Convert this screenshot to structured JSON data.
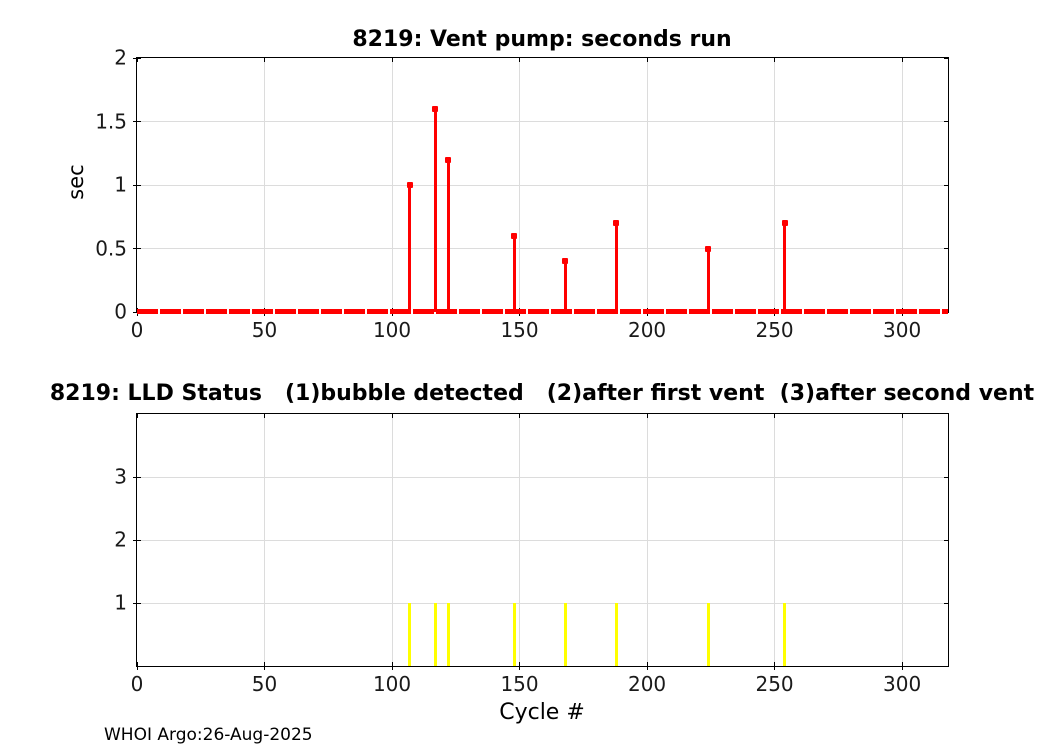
{
  "figure": {
    "footer": "WHOI Argo:26-Aug-2025"
  },
  "colors": {
    "stem_red": "#ff0000",
    "bar_yellow": "#ffff00",
    "grid": "#dcdcdc",
    "axis": "#000000"
  },
  "chart_data": [
    {
      "type": "stem",
      "title": "8219: Vent pump: seconds run",
      "ylabel": "sec",
      "series_color": "#ff0000",
      "x": [
        107,
        117,
        122,
        148,
        168,
        188,
        224,
        254
      ],
      "y": [
        1.0,
        1.6,
        1.2,
        0.6,
        0.4,
        0.7,
        0.5,
        0.7
      ],
      "baseline_note": "all other cycles 0 to ~317 plot at 0 sec (solid red baseline with small gaps)",
      "xlim": [
        0,
        318
      ],
      "ylim": [
        0,
        2
      ],
      "xticks": [
        0,
        50,
        100,
        150,
        200,
        250,
        300
      ],
      "ytick_values": [
        0,
        0.5,
        1,
        1.5,
        2
      ],
      "ytick_labels": [
        "0",
        "0.5",
        "1",
        "1.5",
        "2"
      ],
      "grid": true,
      "legend": null
    },
    {
      "type": "bar",
      "title": "8219: LLD Status   (1)bubble detected   (2)after first vent  (3)after second vent",
      "xlabel": "Cycle #",
      "series_color": "#ffff00",
      "x": [
        107,
        117,
        122,
        148,
        168,
        188,
        224,
        254
      ],
      "y": [
        1,
        1,
        1,
        1,
        1,
        1,
        1,
        1
      ],
      "xlim": [
        0,
        318
      ],
      "ylim": [
        0,
        4
      ],
      "xticks": [
        0,
        50,
        100,
        150,
        200,
        250,
        300
      ],
      "ytick_values": [
        1,
        2,
        3
      ],
      "ytick_labels": [
        "1",
        "2",
        "3"
      ],
      "grid": true,
      "legend": null
    }
  ]
}
